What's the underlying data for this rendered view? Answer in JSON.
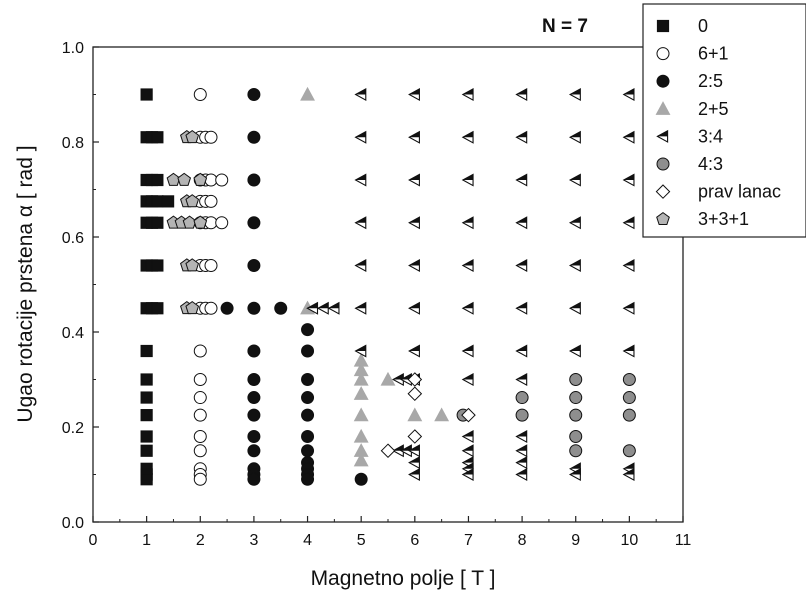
{
  "chart_data": {
    "type": "scatter",
    "annotation": "N = 7",
    "xlabel": "Magnetno polje [ T ]",
    "ylabel": "Ugao rotacije prstena α [ rad ]",
    "xlim": [
      0,
      11
    ],
    "ylim": [
      0.0,
      1.0
    ],
    "x_ticks": [
      "0",
      "1",
      "2",
      "3",
      "4",
      "5",
      "6",
      "7",
      "8",
      "9",
      "10",
      "11"
    ],
    "y_ticks": [
      "0.0",
      "0.2",
      "0.4",
      "0.6",
      "0.8",
      "1.0"
    ],
    "legend_placement": "top-right",
    "series": [
      {
        "name": "0",
        "marker": "square",
        "fill": "#111111",
        "points": [
          [
            1.0,
            0.9
          ],
          [
            1.0,
            0.81
          ],
          [
            1.1,
            0.81
          ],
          [
            1.2,
            0.81
          ],
          [
            1.0,
            0.72
          ],
          [
            1.1,
            0.72
          ],
          [
            1.2,
            0.72
          ],
          [
            1.0,
            0.675
          ],
          [
            1.1,
            0.675
          ],
          [
            1.2,
            0.675
          ],
          [
            1.0,
            0.63
          ],
          [
            1.1,
            0.63
          ],
          [
            1.2,
            0.63
          ],
          [
            1.0,
            0.54
          ],
          [
            1.1,
            0.54
          ],
          [
            1.2,
            0.54
          ],
          [
            1.0,
            0.45
          ],
          [
            1.1,
            0.45
          ],
          [
            1.2,
            0.45
          ],
          [
            1.0,
            0.36
          ],
          [
            1.0,
            0.3
          ],
          [
            1.0,
            0.262
          ],
          [
            1.0,
            0.225
          ],
          [
            1.0,
            0.18
          ],
          [
            1.0,
            0.15
          ],
          [
            1.0,
            0.112
          ],
          [
            1.0,
            0.1
          ],
          [
            1.0,
            0.09
          ],
          [
            1.4,
            0.675
          ]
        ]
      },
      {
        "name": "6+1",
        "marker": "circle",
        "fill": "#ffffff",
        "points": [
          [
            2.0,
            0.9
          ],
          [
            2.0,
            0.81
          ],
          [
            2.1,
            0.81
          ],
          [
            2.2,
            0.81
          ],
          [
            2.0,
            0.72
          ],
          [
            2.1,
            0.72
          ],
          [
            2.2,
            0.72
          ],
          [
            2.4,
            0.72
          ],
          [
            2.0,
            0.675
          ],
          [
            2.1,
            0.675
          ],
          [
            2.2,
            0.675
          ],
          [
            2.0,
            0.63
          ],
          [
            2.1,
            0.63
          ],
          [
            2.2,
            0.63
          ],
          [
            2.4,
            0.63
          ],
          [
            2.0,
            0.54
          ],
          [
            2.1,
            0.54
          ],
          [
            2.2,
            0.54
          ],
          [
            2.0,
            0.45
          ],
          [
            2.1,
            0.45
          ],
          [
            2.2,
            0.45
          ],
          [
            2.0,
            0.36
          ],
          [
            2.0,
            0.3
          ],
          [
            2.0,
            0.262
          ],
          [
            2.0,
            0.225
          ],
          [
            2.0,
            0.18
          ],
          [
            2.0,
            0.15
          ],
          [
            2.0,
            0.112
          ],
          [
            2.0,
            0.1
          ],
          [
            2.0,
            0.09
          ]
        ]
      },
      {
        "name": "2:5",
        "marker": "circle",
        "fill": "#111111",
        "points": [
          [
            3.0,
            0.9
          ],
          [
            3.0,
            0.81
          ],
          [
            3.0,
            0.72
          ],
          [
            3.0,
            0.63
          ],
          [
            3.0,
            0.54
          ],
          [
            2.5,
            0.45
          ],
          [
            3.0,
            0.45
          ],
          [
            3.5,
            0.45
          ],
          [
            3.0,
            0.36
          ],
          [
            3.0,
            0.3
          ],
          [
            3.0,
            0.262
          ],
          [
            3.0,
            0.225
          ],
          [
            3.0,
            0.18
          ],
          [
            3.0,
            0.15
          ],
          [
            3.0,
            0.112
          ],
          [
            3.0,
            0.1
          ],
          [
            3.0,
            0.09
          ],
          [
            4.0,
            0.405
          ],
          [
            4.0,
            0.36
          ],
          [
            4.0,
            0.3
          ],
          [
            4.0,
            0.262
          ],
          [
            4.0,
            0.225
          ],
          [
            4.0,
            0.18
          ],
          [
            4.0,
            0.15
          ],
          [
            4.0,
            0.125
          ],
          [
            4.0,
            0.112
          ],
          [
            4.0,
            0.1
          ],
          [
            4.0,
            0.09
          ],
          [
            5.0,
            0.09
          ]
        ]
      },
      {
        "name": "2+5",
        "marker": "triangle-up",
        "fill": "#a8a8a8",
        "points": [
          [
            4.0,
            0.9
          ],
          [
            4.0,
            0.45
          ],
          [
            5.0,
            0.34
          ],
          [
            5.0,
            0.32
          ],
          [
            5.0,
            0.3
          ],
          [
            5.0,
            0.27
          ],
          [
            5.0,
            0.225
          ],
          [
            5.0,
            0.18
          ],
          [
            5.0,
            0.15
          ],
          [
            5.0,
            0.13
          ],
          [
            5.5,
            0.3
          ],
          [
            6.0,
            0.225
          ],
          [
            6.5,
            0.225
          ]
        ]
      },
      {
        "name": "3:4",
        "marker": "triangle-left",
        "fill": "#111111",
        "points": [
          [
            5.0,
            0.9
          ],
          [
            6.0,
            0.9
          ],
          [
            7.0,
            0.9
          ],
          [
            8.0,
            0.9
          ],
          [
            9.0,
            0.9
          ],
          [
            10.0,
            0.9
          ],
          [
            5.0,
            0.81
          ],
          [
            6.0,
            0.81
          ],
          [
            7.0,
            0.81
          ],
          [
            8.0,
            0.81
          ],
          [
            9.0,
            0.81
          ],
          [
            10.0,
            0.81
          ],
          [
            5.0,
            0.72
          ],
          [
            6.0,
            0.72
          ],
          [
            7.0,
            0.72
          ],
          [
            8.0,
            0.72
          ],
          [
            9.0,
            0.72
          ],
          [
            10.0,
            0.72
          ],
          [
            5.0,
            0.63
          ],
          [
            6.0,
            0.63
          ],
          [
            7.0,
            0.63
          ],
          [
            8.0,
            0.63
          ],
          [
            9.0,
            0.63
          ],
          [
            10.0,
            0.63
          ],
          [
            5.0,
            0.54
          ],
          [
            6.0,
            0.54
          ],
          [
            7.0,
            0.54
          ],
          [
            8.0,
            0.54
          ],
          [
            9.0,
            0.54
          ],
          [
            10.0,
            0.54
          ],
          [
            4.1,
            0.45
          ],
          [
            4.3,
            0.45
          ],
          [
            4.5,
            0.45
          ],
          [
            5.0,
            0.45
          ],
          [
            6.0,
            0.45
          ],
          [
            7.0,
            0.45
          ],
          [
            8.0,
            0.45
          ],
          [
            9.0,
            0.45
          ],
          [
            10.0,
            0.45
          ],
          [
            5.0,
            0.36
          ],
          [
            6.0,
            0.36
          ],
          [
            7.0,
            0.36
          ],
          [
            8.0,
            0.36
          ],
          [
            9.0,
            0.36
          ],
          [
            10.0,
            0.36
          ],
          [
            5.7,
            0.3
          ],
          [
            5.85,
            0.3
          ],
          [
            6.0,
            0.3
          ],
          [
            7.0,
            0.3
          ],
          [
            8.0,
            0.3
          ],
          [
            5.7,
            0.15
          ],
          [
            5.85,
            0.15
          ],
          [
            6.0,
            0.15
          ],
          [
            6.0,
            0.125
          ],
          [
            6.0,
            0.1
          ],
          [
            7.0,
            0.18
          ],
          [
            7.0,
            0.15
          ],
          [
            7.0,
            0.125
          ],
          [
            7.0,
            0.112
          ],
          [
            7.0,
            0.1
          ],
          [
            8.0,
            0.18
          ],
          [
            8.0,
            0.15
          ],
          [
            8.0,
            0.125
          ],
          [
            8.0,
            0.1
          ],
          [
            9.0,
            0.112
          ],
          [
            9.0,
            0.1
          ],
          [
            10.0,
            0.112
          ],
          [
            10.0,
            0.1
          ]
        ]
      },
      {
        "name": "4:3",
        "marker": "circle",
        "fill": "#8e8e8e",
        "points": [
          [
            6.9,
            0.225
          ],
          [
            8.0,
            0.262
          ],
          [
            8.0,
            0.225
          ],
          [
            9.0,
            0.3
          ],
          [
            9.0,
            0.262
          ],
          [
            9.0,
            0.225
          ],
          [
            9.0,
            0.18
          ],
          [
            9.0,
            0.15
          ],
          [
            10.0,
            0.3
          ],
          [
            10.0,
            0.262
          ],
          [
            10.0,
            0.225
          ],
          [
            10.0,
            0.15
          ]
        ]
      },
      {
        "name": "prav lanac",
        "marker": "diamond",
        "fill": "#ffffff",
        "points": [
          [
            5.5,
            0.15
          ],
          [
            6.0,
            0.3
          ],
          [
            6.0,
            0.27
          ],
          [
            6.0,
            0.18
          ],
          [
            7.0,
            0.225
          ]
        ]
      },
      {
        "name": "3+3+1",
        "marker": "pentagon",
        "fill": "#b4b4b4",
        "points": [
          [
            1.75,
            0.81
          ],
          [
            1.85,
            0.81
          ],
          [
            1.5,
            0.72
          ],
          [
            1.7,
            0.72
          ],
          [
            2.0,
            0.72
          ],
          [
            1.75,
            0.675
          ],
          [
            1.85,
            0.675
          ],
          [
            1.5,
            0.63
          ],
          [
            1.65,
            0.63
          ],
          [
            1.8,
            0.63
          ],
          [
            2.0,
            0.63
          ],
          [
            1.75,
            0.54
          ],
          [
            1.85,
            0.54
          ],
          [
            1.75,
            0.45
          ],
          [
            1.85,
            0.45
          ]
        ]
      }
    ]
  }
}
